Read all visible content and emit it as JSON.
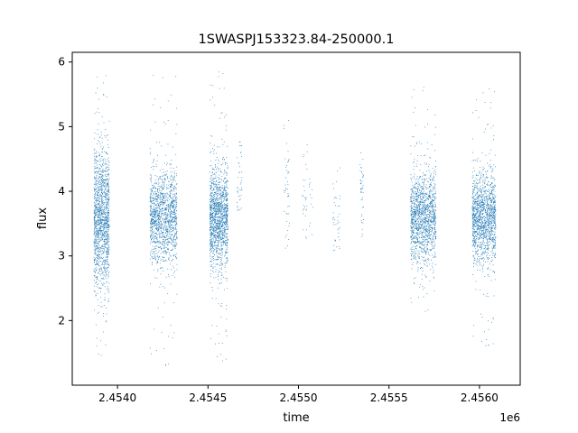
{
  "chart_data": {
    "type": "scatter",
    "title": "1SWASPJ153323.84-250000.1",
    "xlabel": "time",
    "ylabel": "flux",
    "x_offset_label": "1e6",
    "xlim": [
      2453750,
      2456225
    ],
    "ylim": [
      1.0,
      6.15
    ],
    "xticks": [
      2454000,
      2454500,
      2455000,
      2455500,
      2456000
    ],
    "xtick_labels": [
      "2.4540",
      "2.4545",
      "2.4550",
      "2.4555",
      "2.4560"
    ],
    "yticks": [
      2,
      3,
      4,
      5,
      6
    ],
    "ytick_labels": [
      "2",
      "3",
      "4",
      "5",
      "6"
    ],
    "grid": false,
    "marker_color": "#1f77b4",
    "clusters": [
      {
        "x_start": 2453870,
        "x_end": 2453955,
        "y_center": 3.55,
        "y_spread": 0.55,
        "y_min": 1.45,
        "y_max": 5.9,
        "density": "high"
      },
      {
        "x_start": 2454180,
        "x_end": 2454330,
        "y_center": 3.6,
        "y_spread": 0.35,
        "y_min": 1.25,
        "y_max": 5.9,
        "density": "high"
      },
      {
        "x_start": 2454510,
        "x_end": 2454610,
        "y_center": 3.6,
        "y_spread": 0.4,
        "y_min": 1.3,
        "y_max": 5.9,
        "density": "high"
      },
      {
        "x_start": 2454660,
        "x_end": 2454690,
        "y_center": 4.1,
        "y_spread": 0.35,
        "y_min": 3.7,
        "y_max": 4.8,
        "density": "sparse"
      },
      {
        "x_start": 2454920,
        "x_end": 2454950,
        "y_center": 4.1,
        "y_spread": 0.5,
        "y_min": 2.9,
        "y_max": 5.25,
        "density": "sparse"
      },
      {
        "x_start": 2455020,
        "x_end": 2455080,
        "y_center": 3.9,
        "y_spread": 0.45,
        "y_min": 3.2,
        "y_max": 4.85,
        "density": "sparse"
      },
      {
        "x_start": 2455190,
        "x_end": 2455230,
        "y_center": 3.7,
        "y_spread": 0.35,
        "y_min": 3.0,
        "y_max": 4.4,
        "density": "sparse"
      },
      {
        "x_start": 2455340,
        "x_end": 2455360,
        "y_center": 4.1,
        "y_spread": 0.3,
        "y_min": 3.2,
        "y_max": 4.7,
        "density": "sparse"
      },
      {
        "x_start": 2455620,
        "x_end": 2455760,
        "y_center": 3.6,
        "y_spread": 0.35,
        "y_min": 2.1,
        "y_max": 5.65,
        "density": "high"
      },
      {
        "x_start": 2455960,
        "x_end": 2456090,
        "y_center": 3.6,
        "y_spread": 0.35,
        "y_min": 1.55,
        "y_max": 5.65,
        "density": "high"
      }
    ]
  }
}
